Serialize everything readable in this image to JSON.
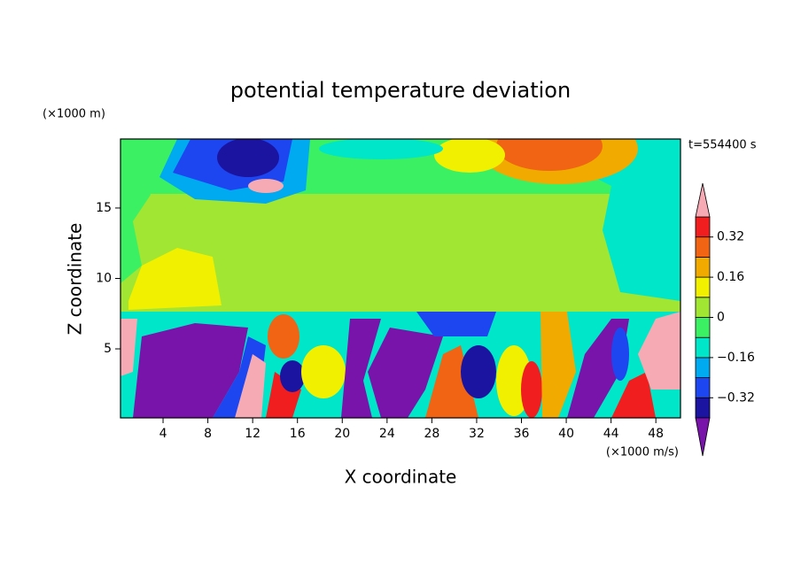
{
  "chart_data": {
    "type": "contour",
    "title": "potential temperature deviation",
    "x_label": "X coordinate",
    "y_label": "Z coordinate",
    "x_unit": "(×1000 m/s)",
    "y_unit": "(×1000 m)",
    "time_label": "t=554400 s",
    "xlim": [
      0.2,
      50.2
    ],
    "ylim": [
      0.1,
      19.9
    ],
    "xticks": [
      4,
      8,
      12,
      16,
      20,
      24,
      28,
      32,
      36,
      40,
      44,
      48
    ],
    "yticks": [
      5,
      10,
      15
    ],
    "colorbar": {
      "levels": [
        -0.4,
        -0.32,
        -0.24,
        -0.16,
        -0.08,
        0,
        0.08,
        0.16,
        0.24,
        0.32,
        0.4
      ],
      "colors": [
        "#1a14a0",
        "#1e46f0",
        "#00aaf0",
        "#00e6c8",
        "#3cf064",
        "#a0e632",
        "#f0f000",
        "#f0aa00",
        "#f06414",
        "#f01e1e"
      ],
      "under_color": "#7814aa",
      "over_color": "#f5aab4",
      "ticks": [
        {
          "value": 0.32,
          "label": "0.32"
        },
        {
          "value": 0.16,
          "label": "0.16"
        },
        0,
        {
          "value": -0.16,
          "label": "−0.16"
        },
        {
          "value": -0.32,
          "label": "−0.32"
        }
      ]
    }
  }
}
